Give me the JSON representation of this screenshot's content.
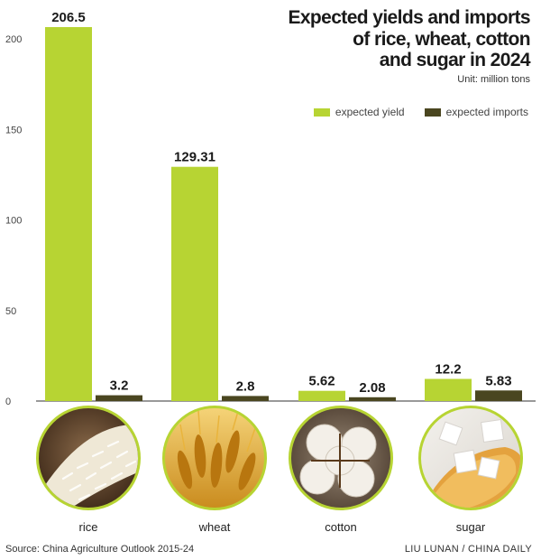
{
  "title_lines": [
    "Expected yields and imports",
    "of rice, wheat, cotton",
    "and sugar in 2024"
  ],
  "unit": "Unit: million tons",
  "source": "Source: China Agriculture Outlook 2015-24",
  "credit": "LIU LUNAN / CHINA DAILY",
  "chart_data": {
    "type": "bar",
    "categories": [
      "rice",
      "wheat",
      "cotton",
      "sugar"
    ],
    "series": [
      {
        "name": "expected yield",
        "values": [
          206.5,
          129.31,
          5.62,
          12.2
        ],
        "labels": [
          "206.5",
          "129.31",
          "5.62",
          "12.2"
        ],
        "color": "#b7d433"
      },
      {
        "name": "expected imports",
        "values": [
          3.2,
          2.8,
          2.08,
          5.83
        ],
        "labels": [
          "3.2",
          "2.8",
          "2.08",
          "5.83"
        ],
        "color": "#4a4620"
      }
    ],
    "yticks": [
      "0",
      "50",
      "100",
      "150",
      "200"
    ],
    "ylim": [
      0,
      210
    ],
    "grid": false,
    "legend": "top-right",
    "category_images": [
      "rice-grains",
      "wheat-ears",
      "cotton-boll",
      "sugar-cubes"
    ]
  },
  "colors": {
    "ring": "#b7d433",
    "axis": "#333333"
  }
}
